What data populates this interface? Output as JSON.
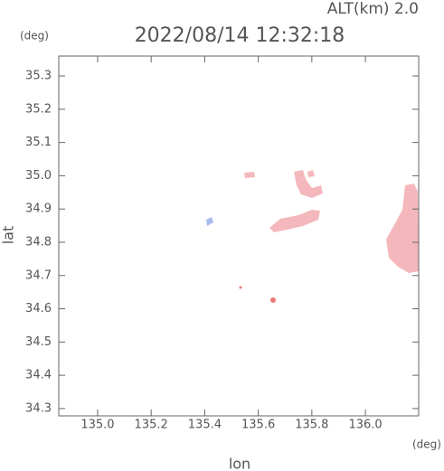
{
  "header": {
    "altitude": "ALT(km) 2.0",
    "timestamp": "2022/08/14 12:32:18"
  },
  "axes": {
    "x": {
      "label": "lon",
      "unit": "(deg)",
      "lim": [
        134.855,
        136.199
      ],
      "ticks": [
        {
          "value": 135.0,
          "label": "135.0"
        },
        {
          "value": 135.2,
          "label": "135.2"
        },
        {
          "value": 135.4,
          "label": "135.4"
        },
        {
          "value": 135.6,
          "label": "135.6"
        },
        {
          "value": 135.8,
          "label": "135.8"
        },
        {
          "value": 136.0,
          "label": "136.0"
        }
      ]
    },
    "y": {
      "label": "lat",
      "unit": "(deg)",
      "lim": [
        34.278,
        35.36
      ],
      "ticks": [
        {
          "value": 34.3,
          "label": "34.3"
        },
        {
          "value": 34.4,
          "label": "34.4"
        },
        {
          "value": 34.5,
          "label": "34.5"
        },
        {
          "value": 34.6,
          "label": "34.6"
        },
        {
          "value": 34.7,
          "label": "34.7"
        },
        {
          "value": 34.8,
          "label": "34.8"
        },
        {
          "value": 34.9,
          "label": "34.9"
        },
        {
          "value": 35.0,
          "label": "35.0"
        },
        {
          "value": 35.1,
          "label": "35.1"
        },
        {
          "value": 35.2,
          "label": "35.2"
        },
        {
          "value": 35.3,
          "label": "35.3"
        }
      ]
    }
  }
}
